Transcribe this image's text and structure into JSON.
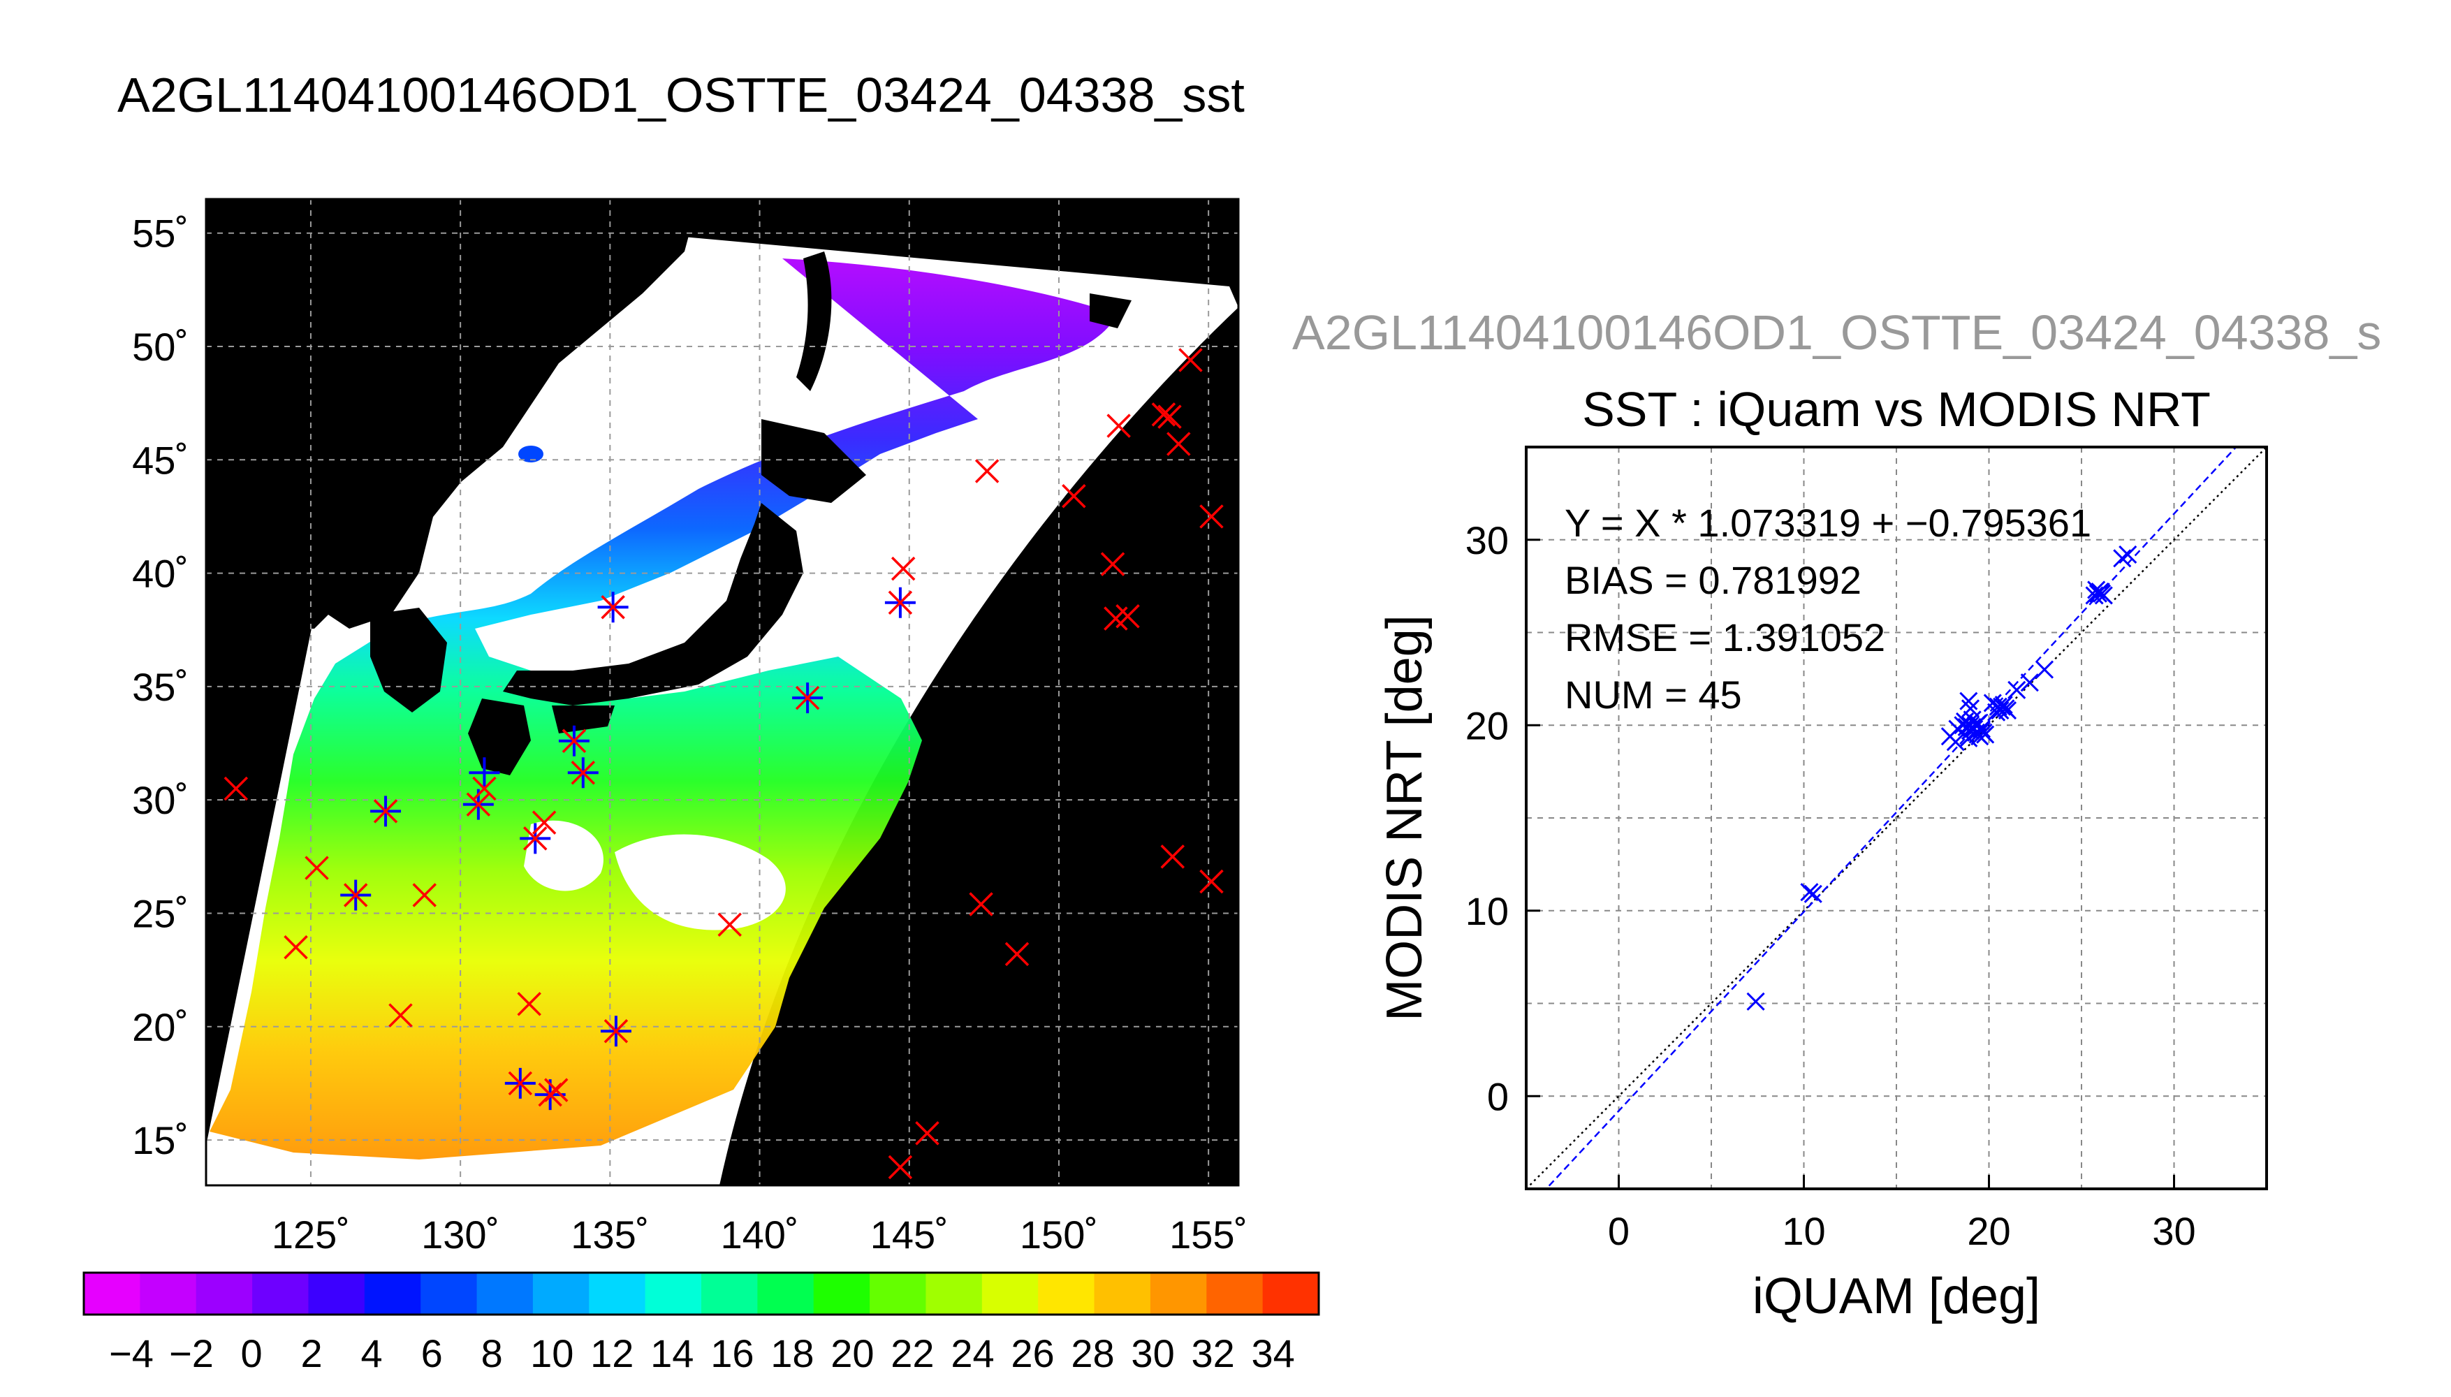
{
  "map_panel": {
    "title": "A2GL11404100146OD1_OSTTE_03424_04338_sst",
    "lat_ticks": [
      "55˚",
      "50˚",
      "45˚",
      "40˚",
      "35˚",
      "30˚",
      "25˚",
      "20˚",
      "15˚"
    ],
    "lon_ticks": [
      "125˚",
      "130˚",
      "135˚",
      "140˚",
      "145˚",
      "150˚",
      "155˚"
    ],
    "colorbar_ticks": [
      "−4",
      "−2",
      "0",
      "2",
      "4",
      "6",
      "8",
      "10",
      "12",
      "14",
      "16",
      "18",
      "20",
      "22",
      "24",
      "26",
      "28",
      "30",
      "32",
      "34"
    ],
    "colors": {
      "background": "#000000",
      "cloud": "#ffffff",
      "land": "#000000",
      "grid": "#9a9a9a",
      "buoy_marker_red": "#ff0000",
      "matched_marker_blue": "#0000ff"
    }
  },
  "scatter_panel": {
    "header": "A2GL11404100146OD1_OSTTE_03424_04338_s",
    "stats": [
      "Y = X * 1.073319 + −0.795361",
      "BIAS = 0.781992",
      "RMSE = 1.391052",
      "NUM = 45"
    ]
  },
  "chart_data": [
    {
      "type": "heatmap",
      "title": "A2GL11404100146OD1_OSTTE_03424_04338_sst",
      "xlim": [
        121.5,
        156
      ],
      "ylim": [
        13,
        56.5
      ],
      "x_ticks": [
        125,
        130,
        135,
        140,
        145,
        150,
        155
      ],
      "y_ticks": [
        15,
        20,
        25,
        30,
        35,
        40,
        45,
        50,
        55
      ],
      "grid": true,
      "colorscale": {
        "min": -5,
        "max": 35,
        "step": 2,
        "tick_values": [
          -4,
          -2,
          0,
          2,
          4,
          6,
          8,
          10,
          12,
          14,
          16,
          18,
          20,
          22,
          24,
          26,
          28,
          30,
          32,
          34
        ],
        "colors": [
          "#e600ff",
          "#c400ff",
          "#9c00ff",
          "#6e00ff",
          "#3c00ff",
          "#0014ff",
          "#0046ff",
          "#0078ff",
          "#00aaff",
          "#00d8ff",
          "#00ffd8",
          "#00ff96",
          "#00ff50",
          "#1eff00",
          "#64ff00",
          "#a0ff00",
          "#d8ff00",
          "#ffe600",
          "#ffc000",
          "#ff9600",
          "#ff6400",
          "#ff3200"
        ]
      },
      "markers": {
        "red_x": [
          [
            122.5,
            30.5
          ],
          [
            124.5,
            23.5
          ],
          [
            125.2,
            27.0
          ],
          [
            126.5,
            25.8
          ],
          [
            127.5,
            29.5
          ],
          [
            128.0,
            20.5
          ],
          [
            128.8,
            25.8
          ],
          [
            130.8,
            30.5
          ],
          [
            130.6,
            29.8
          ],
          [
            132.0,
            17.5
          ],
          [
            132.3,
            21.0
          ],
          [
            132.5,
            28.3
          ],
          [
            132.8,
            29.0
          ],
          [
            133.0,
            17.0
          ],
          [
            133.2,
            17.2
          ],
          [
            133.8,
            32.6
          ],
          [
            134.1,
            31.2
          ],
          [
            135.1,
            38.5
          ],
          [
            135.2,
            19.8
          ],
          [
            139.0,
            24.5
          ],
          [
            141.6,
            34.5
          ],
          [
            144.8,
            40.2
          ],
          [
            144.7,
            38.7
          ],
          [
            144.7,
            13.8
          ],
          [
            145.6,
            15.3
          ],
          [
            147.4,
            25.4
          ],
          [
            147.6,
            44.5
          ],
          [
            148.6,
            23.2
          ],
          [
            150.5,
            43.4
          ],
          [
            151.8,
            40.4
          ],
          [
            152.0,
            46.5
          ],
          [
            151.9,
            38.0
          ],
          [
            152.3,
            38.1
          ],
          [
            153.5,
            47.0
          ],
          [
            153.7,
            46.9
          ],
          [
            154.0,
            45.7
          ],
          [
            154.4,
            49.4
          ],
          [
            153.8,
            27.5
          ],
          [
            155.1,
            42.5
          ],
          [
            155.1,
            26.4
          ]
        ],
        "blue_star": [
          [
            126.5,
            25.8
          ],
          [
            127.5,
            29.5
          ],
          [
            130.6,
            29.8
          ],
          [
            130.8,
            31.2
          ],
          [
            132.0,
            17.5
          ],
          [
            132.5,
            28.3
          ],
          [
            133.0,
            17.0
          ],
          [
            133.8,
            32.6
          ],
          [
            134.1,
            31.2
          ],
          [
            135.1,
            38.5
          ],
          [
            135.2,
            19.8
          ],
          [
            141.6,
            34.5
          ],
          [
            144.7,
            38.7
          ]
        ]
      }
    },
    {
      "type": "scatter",
      "title": "SST : iQuam vs MODIS NRT",
      "xlabel": "iQUAM [deg]",
      "ylabel": "MODIS NRT [deg]",
      "xlim": [
        -5,
        35
      ],
      "ylim": [
        -5,
        35
      ],
      "x_ticks": [
        0,
        10,
        20,
        30
      ],
      "y_ticks": [
        0,
        10,
        20,
        30
      ],
      "grid": true,
      "series": [
        {
          "color": "#0000ff",
          "marker": "x",
          "x": [
            7.4,
            10.3,
            10.5,
            17.9,
            18.3,
            18.6,
            18.7,
            18.9,
            19.0,
            19.1,
            19.2,
            19.3,
            19.4,
            19.5,
            19.6,
            19.7,
            19.4,
            19.1,
            18.8,
            19.0,
            19.3,
            20.5,
            20.6,
            20.8,
            20.9,
            21.0,
            20.7,
            22.2,
            23.0,
            25.7,
            25.9,
            26.0,
            26.2,
            27.2,
            27.5,
            18.2,
            19.8,
            20.2,
            21.5,
            19.0,
            18.9,
            19.6,
            20.4,
            25.8,
            26.1
          ],
          "y": [
            5.1,
            11.0,
            10.9,
            19.4,
            19.8,
            20.0,
            20.2,
            21.3,
            20.0,
            19.9,
            19.8,
            19.6,
            19.5,
            19.4,
            19.7,
            19.6,
            20.1,
            20.3,
            19.9,
            19.7,
            20.0,
            21.0,
            20.8,
            21.1,
            20.9,
            20.8,
            21.0,
            22.3,
            23.0,
            27.0,
            27.1,
            27.2,
            27.0,
            29.0,
            29.2,
            19.1,
            19.5,
            21.2,
            21.9,
            20.9,
            19.3,
            19.8,
            20.7,
            27.3,
            27.1
          ]
        }
      ],
      "lines": [
        {
          "name": "1:1",
          "style": "dotted",
          "color": "#000000",
          "slope": 1,
          "intercept": 0
        },
        {
          "name": "fit",
          "style": "dashed",
          "color": "#0000ff",
          "slope": 1.073319,
          "intercept": -0.795361
        }
      ]
    }
  ]
}
